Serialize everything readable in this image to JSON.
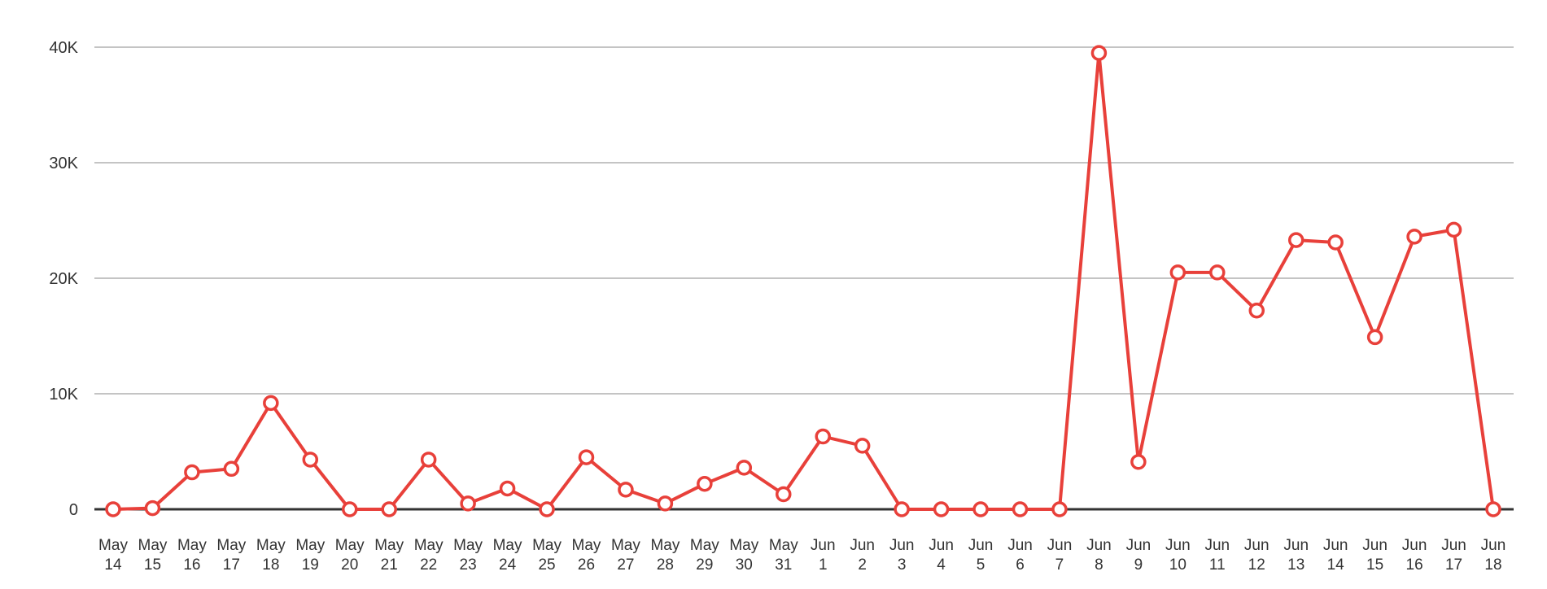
{
  "chart_data": {
    "type": "line",
    "categories": [
      [
        "May",
        "14"
      ],
      [
        "May",
        "15"
      ],
      [
        "May",
        "16"
      ],
      [
        "May",
        "17"
      ],
      [
        "May",
        "18"
      ],
      [
        "May",
        "19"
      ],
      [
        "May",
        "20"
      ],
      [
        "May",
        "21"
      ],
      [
        "May",
        "22"
      ],
      [
        "May",
        "23"
      ],
      [
        "May",
        "24"
      ],
      [
        "May",
        "25"
      ],
      [
        "May",
        "26"
      ],
      [
        "May",
        "27"
      ],
      [
        "May",
        "28"
      ],
      [
        "May",
        "29"
      ],
      [
        "May",
        "30"
      ],
      [
        "May",
        "31"
      ],
      [
        "Jun",
        "1"
      ],
      [
        "Jun",
        "2"
      ],
      [
        "Jun",
        "3"
      ],
      [
        "Jun",
        "4"
      ],
      [
        "Jun",
        "5"
      ],
      [
        "Jun",
        "6"
      ],
      [
        "Jun",
        "7"
      ],
      [
        "Jun",
        "8"
      ],
      [
        "Jun",
        "9"
      ],
      [
        "Jun",
        "10"
      ],
      [
        "Jun",
        "11"
      ],
      [
        "Jun",
        "12"
      ],
      [
        "Jun",
        "13"
      ],
      [
        "Jun",
        "14"
      ],
      [
        "Jun",
        "15"
      ],
      [
        "Jun",
        "16"
      ],
      [
        "Jun",
        "17"
      ],
      [
        "Jun",
        "18"
      ]
    ],
    "series": [
      {
        "values": [
          0,
          100,
          3200,
          3500,
          9200,
          4300,
          0,
          0,
          4300,
          500,
          1800,
          0,
          4500,
          1700,
          500,
          2200,
          3600,
          1300,
          6300,
          5500,
          0,
          0,
          0,
          0,
          0,
          39500,
          4100,
          20500,
          20500,
          17200,
          23300,
          23100,
          14900,
          23600,
          24200,
          0
        ],
        "color": "#e8403a"
      }
    ],
    "y_ticks": [
      {
        "value": 0,
        "label": "0"
      },
      {
        "value": 10000,
        "label": "10K"
      },
      {
        "value": 20000,
        "label": "20K"
      },
      {
        "value": 30000,
        "label": "30K"
      },
      {
        "value": 40000,
        "label": "40K"
      }
    ],
    "ylim": [
      0,
      40000
    ],
    "grid": true,
    "legend": "none",
    "colors": {
      "series": "#e8403a",
      "grid": "#8a8a8a",
      "baseline": "#333333",
      "text": "#333333",
      "marker_fill": "#ffffff"
    }
  }
}
